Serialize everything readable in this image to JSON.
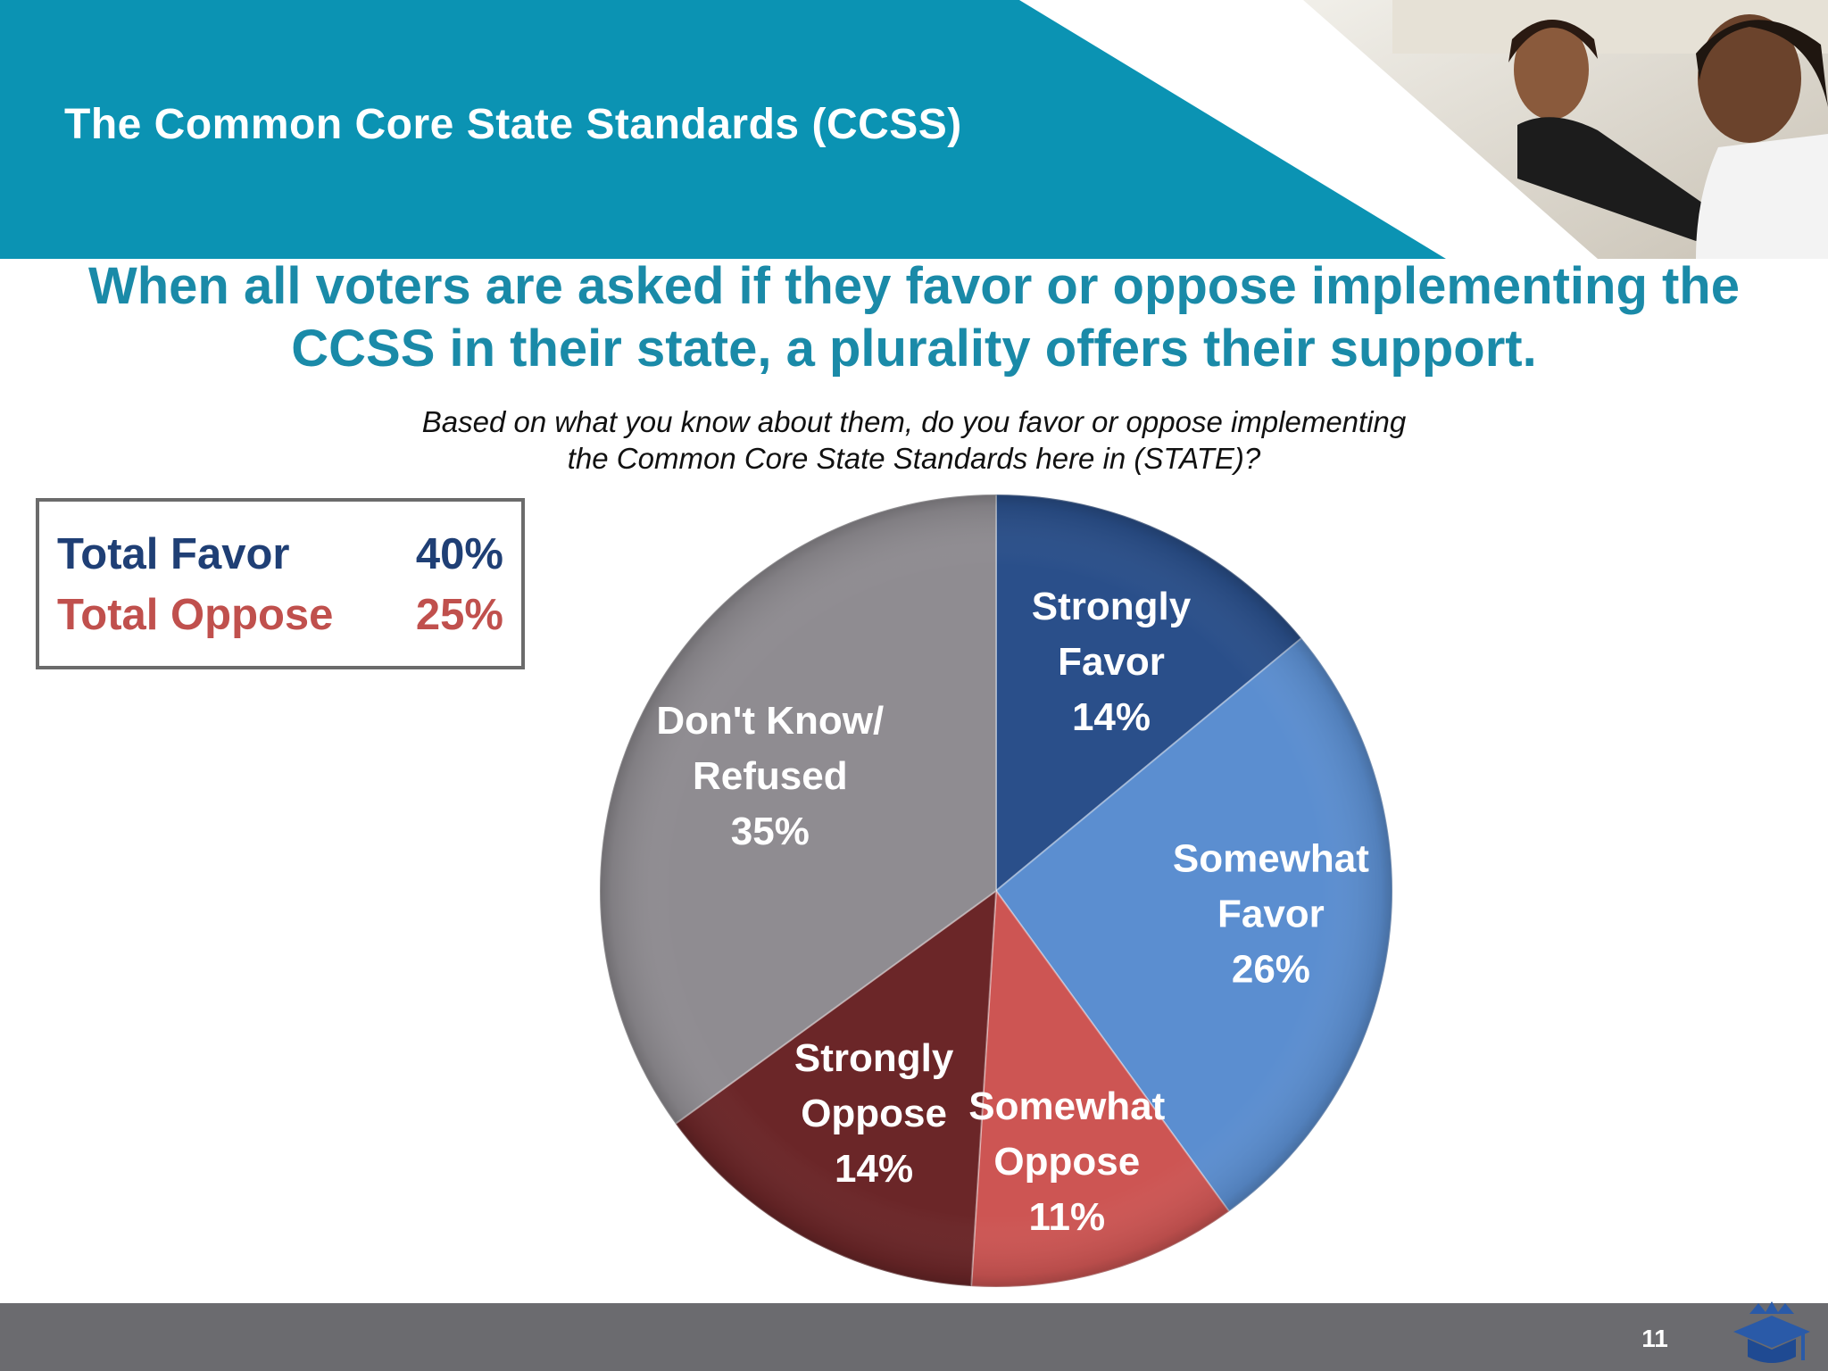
{
  "slide": {
    "header_title": "The Common Core State Standards (CCSS)",
    "headline_lines": [
      "When all voters are asked if they favor or oppose implementing the",
      "CCSS in their state, a plurality offers their support."
    ],
    "question_lines": [
      "Based on what you know about them, do you favor or oppose implementing",
      "the Common Core State Standards here in (STATE)?"
    ],
    "page_number": "11",
    "colors": {
      "header_teal": "#0b93b3",
      "headline_teal": "#1a8aa8",
      "favor_navy": "#1f3f75",
      "oppose_red": "#c0504d",
      "footer_gray": "#6b6b6f"
    }
  },
  "totals": {
    "favor_label": "Total Favor",
    "favor_value": "40%",
    "oppose_label": "Total Oppose",
    "oppose_value": "25%"
  },
  "chart_data": {
    "type": "pie",
    "title": "",
    "slices": [
      {
        "lines": [
          "Strongly",
          "Favor",
          "14%"
        ],
        "value": 14,
        "color": "#2a4f8a"
      },
      {
        "lines": [
          "Somewhat",
          "Favor",
          "26%"
        ],
        "value": 26,
        "color": "#5b8ed0"
      },
      {
        "lines": [
          "Somewhat",
          "Oppose",
          "11%"
        ],
        "value": 11,
        "color": "#cd5553"
      },
      {
        "lines": [
          "Strongly",
          "Oppose",
          "14%"
        ],
        "value": 14,
        "color": "#6b2628"
      },
      {
        "lines": [
          "Don't Know/",
          "Refused",
          "35%"
        ],
        "value": 35,
        "color": "#8f8c91"
      }
    ]
  }
}
